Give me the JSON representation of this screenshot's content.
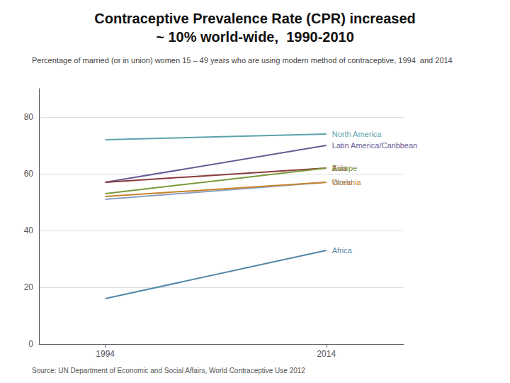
{
  "chart_data": {
    "type": "line",
    "title": "Contraceptive Prevalence Rate (CPR) increased\n~ 10% world-wide,  1990-2010",
    "subtitle": "Percentage of married (or in union) women 15 – 49 years who are using modern method of contraceptive, 1994  and 2014",
    "annotations": [
      "Source: UN Department of Economic and Social Affairs, World Contraceptive Use 2012"
    ],
    "x": [
      1994,
      2014
    ],
    "series": [
      {
        "name": "North America",
        "color": "#5BA3AC",
        "values": [
          72,
          74
        ]
      },
      {
        "name": "Latin America/Caribbean",
        "color": "#6B5B95",
        "values": [
          57,
          70
        ]
      },
      {
        "name": "Asia",
        "color": "#8B3A3A",
        "values": [
          57,
          62
        ]
      },
      {
        "name": "Europe",
        "color": "#7A9A3A",
        "values": [
          53,
          62
        ]
      },
      {
        "name": "World",
        "color": "#8BA0C0",
        "values": [
          51,
          57
        ]
      },
      {
        "name": "Oceania",
        "color": "#C8832A",
        "values": [
          52,
          57
        ]
      },
      {
        "name": "Africa",
        "color": "#5588AA",
        "values": [
          16,
          33
        ]
      }
    ],
    "xlim": [
      1988,
      2021
    ],
    "xticks": [
      1994,
      2014
    ],
    "ylim": [
      0,
      90
    ],
    "yticks": [
      0,
      20,
      40,
      60,
      80
    ],
    "grid": true
  }
}
